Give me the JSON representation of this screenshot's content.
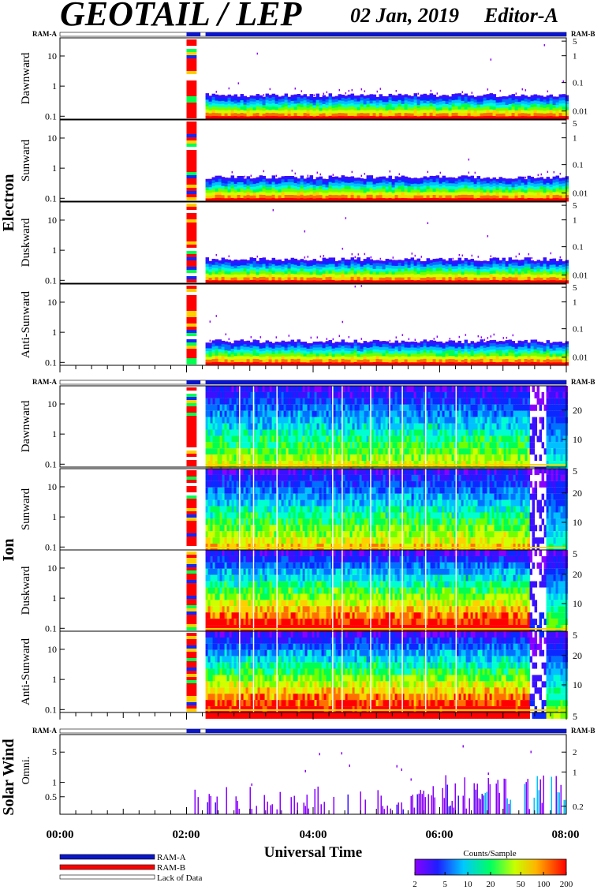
{
  "header": {
    "instrument": "GEOTAIL / LEP",
    "date": "02 Jan, 2019",
    "edition": "Editor-A"
  },
  "mode_labels": {
    "left": "RAM-A",
    "right": "RAM-B"
  },
  "group_labels": {
    "electron": "Electron",
    "ion": "Ion",
    "solar_wind": "Solar Wind"
  },
  "panel_labels": {
    "electron": [
      "Dawnward",
      "Sunward",
      "Duskward",
      "Anti-Sunward"
    ],
    "ion": [
      "Dawnward",
      "Sunward",
      "Duskward",
      "Anti-Sunward"
    ],
    "solar_wind": "Omni."
  },
  "legend": {
    "ram_a": "RAM-A",
    "ram_b": "RAM-B",
    "lack": "Lack of Data",
    "ram_a_color": "#0a16c8",
    "ram_b_color": "#ff0000"
  },
  "colorbar": {
    "title": "Counts/Sample",
    "ticks": [
      "2",
      "5",
      "10",
      "20",
      "50",
      "100",
      "200"
    ]
  },
  "chart_data": [
    {
      "type": "heatmap",
      "title": "Electron",
      "panels": [
        "Dawnward",
        "Sunward",
        "Duskward",
        "Anti-Sunward"
      ],
      "xlabel": "Universal Time",
      "xlim": [
        "00:00",
        "08:00"
      ],
      "x_ticks": [
        "00:00",
        "02:00",
        "04:00",
        "06:00",
        "08:00"
      ],
      "y_left_ticks": [
        "0.1",
        "1",
        "10"
      ],
      "y_right_ticks": [
        "0.01",
        "0.1",
        "1",
        "5"
      ],
      "log_scale": true,
      "data_gaps": [
        [
          "00:00",
          "02:00"
        ],
        [
          "02:15",
          "02:20"
        ]
      ],
      "colorbar": {
        "label": "Counts/Sample",
        "range": [
          2,
          200
        ],
        "scale": "log"
      }
    },
    {
      "type": "heatmap",
      "title": "Ion",
      "panels": [
        "Dawnward",
        "Sunward",
        "Duskward",
        "Anti-Sunward"
      ],
      "xlim": [
        "00:00",
        "08:00"
      ],
      "y_left_ticks": [
        "0.1",
        "1",
        "10"
      ],
      "y_right_ticks": [
        "5",
        "10",
        "20"
      ],
      "log_scale": true,
      "data_gaps": [
        [
          "00:00",
          "02:00"
        ],
        [
          "02:15",
          "02:20"
        ]
      ],
      "colorbar": {
        "label": "Counts/Sample",
        "range": [
          2,
          200
        ],
        "scale": "log"
      }
    },
    {
      "type": "heatmap",
      "title": "Solar Wind",
      "panels": [
        "Omni."
      ],
      "xlim": [
        "00:00",
        "08:00"
      ],
      "y_left_ticks": [
        "0.5",
        "1",
        "5"
      ],
      "y_right_ticks": [
        "0.2",
        "1",
        "2"
      ],
      "log_scale": true,
      "colorbar": {
        "label": "Counts/Sample",
        "range": [
          2,
          200
        ],
        "scale": "log"
      }
    }
  ],
  "axis": {
    "xlabel": "Universal Time",
    "x_ticks": [
      "00:00",
      "02:00",
      "04:00",
      "06:00",
      "08:00"
    ],
    "electron_left": [
      "10",
      "1",
      "0.1"
    ],
    "electron_right": [
      "5",
      "1",
      "0.1",
      "0.01"
    ],
    "ion_left": [
      "10",
      "1",
      "0.1"
    ],
    "ion_right": [
      "20",
      "10",
      "5"
    ],
    "sw_left": [
      "5",
      "1",
      "0.5"
    ],
    "sw_right": [
      "2",
      "1",
      "0.2"
    ]
  }
}
